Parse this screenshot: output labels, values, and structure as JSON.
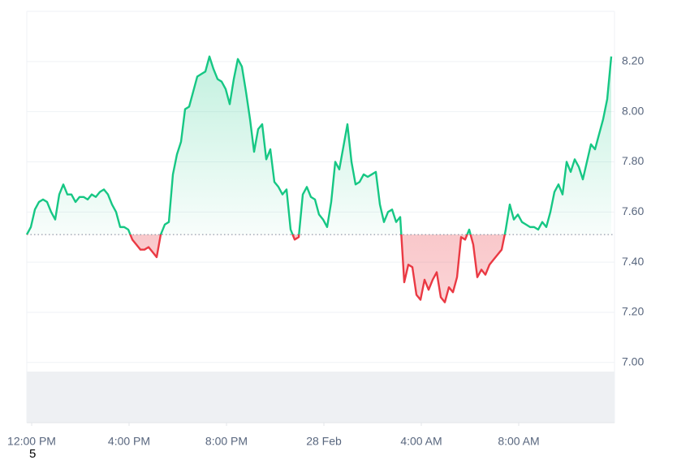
{
  "chart_data": {
    "type": "line",
    "up_color": "#16c784",
    "down_color": "#ea3943",
    "baseline": 7.51,
    "grid": true,
    "footnote": "5",
    "xlim": [
      -12,
      1436
    ],
    "xticks": [
      {
        "value": 0,
        "label": "12:00 PM"
      },
      {
        "value": 240,
        "label": "4:00 PM"
      },
      {
        "value": 480,
        "label": "8:00 PM"
      },
      {
        "value": 720,
        "label": "28 Feb"
      },
      {
        "value": 960,
        "label": "4:00 AM"
      },
      {
        "value": 1200,
        "label": "8:00 AM"
      }
    ],
    "ylim": [
      6.76,
      8.4
    ],
    "yticks": [
      {
        "value": 7.0,
        "label": "7.00"
      },
      {
        "value": 7.2,
        "label": "7.20"
      },
      {
        "value": 7.4,
        "label": "7.40"
      },
      {
        "value": 7.6,
        "label": "7.60"
      },
      {
        "value": 7.8,
        "label": "7.80"
      },
      {
        "value": 8.0,
        "label": "8.00"
      },
      {
        "value": 8.2,
        "label": "8.20"
      }
    ],
    "x": [
      -12,
      -2,
      8,
      18,
      28,
      38,
      48,
      58,
      68,
      78,
      88,
      98,
      108,
      118,
      128,
      138,
      148,
      158,
      168,
      178,
      188,
      198,
      208,
      218,
      228,
      238,
      248,
      258,
      268,
      278,
      288,
      298,
      308,
      318,
      328,
      338,
      348,
      358,
      368,
      378,
      388,
      398,
      408,
      418,
      428,
      438,
      448,
      458,
      468,
      478,
      488,
      498,
      508,
      518,
      528,
      538,
      548,
      558,
      568,
      578,
      588,
      598,
      608,
      618,
      628,
      638,
      648,
      658,
      668,
      678,
      688,
      698,
      708,
      718,
      728,
      738,
      748,
      758,
      768,
      778,
      788,
      798,
      808,
      818,
      828,
      838,
      848,
      858,
      868,
      878,
      888,
      898,
      908,
      918,
      928,
      938,
      948,
      958,
      968,
      978,
      988,
      998,
      1008,
      1018,
      1028,
      1038,
      1048,
      1058,
      1068,
      1078,
      1088,
      1098,
      1108,
      1118,
      1128,
      1138,
      1148,
      1158,
      1168,
      1178,
      1188,
      1198,
      1208,
      1218,
      1228,
      1238,
      1248,
      1258,
      1268,
      1278,
      1288,
      1298,
      1308,
      1318,
      1328,
      1338,
      1348,
      1358,
      1368,
      1378,
      1388,
      1398,
      1408,
      1418,
      1428
    ],
    "values": [
      7.51,
      7.54,
      7.61,
      7.64,
      7.65,
      7.64,
      7.6,
      7.57,
      7.67,
      7.71,
      7.67,
      7.67,
      7.64,
      7.66,
      7.66,
      7.65,
      7.67,
      7.66,
      7.68,
      7.69,
      7.67,
      7.63,
      7.6,
      7.54,
      7.54,
      7.53,
      7.49,
      7.47,
      7.45,
      7.45,
      7.46,
      7.44,
      7.42,
      7.51,
      7.55,
      7.56,
      7.75,
      7.83,
      7.88,
      8.01,
      8.02,
      8.08,
      8.14,
      8.15,
      8.16,
      8.22,
      8.17,
      8.13,
      8.12,
      8.09,
      8.03,
      8.13,
      8.21,
      8.18,
      8.08,
      7.97,
      7.84,
      7.93,
      7.95,
      7.81,
      7.85,
      7.72,
      7.7,
      7.67,
      7.69,
      7.53,
      7.49,
      7.5,
      7.67,
      7.7,
      7.66,
      7.65,
      7.59,
      7.57,
      7.54,
      7.64,
      7.8,
      7.77,
      7.86,
      7.95,
      7.8,
      7.71,
      7.72,
      7.75,
      7.74,
      7.75,
      7.76,
      7.63,
      7.56,
      7.6,
      7.61,
      7.56,
      7.58,
      7.32,
      7.39,
      7.38,
      7.27,
      7.25,
      7.33,
      7.29,
      7.33,
      7.36,
      7.26,
      7.24,
      7.3,
      7.28,
      7.34,
      7.5,
      7.49,
      7.53,
      7.47,
      7.34,
      7.37,
      7.35,
      7.39,
      7.41,
      7.43,
      7.45,
      7.53,
      7.63,
      7.57,
      7.59,
      7.56,
      7.55,
      7.54,
      7.54,
      7.53,
      7.56,
      7.54,
      7.6,
      7.68,
      7.71,
      7.67,
      7.8,
      7.76,
      7.81,
      7.78,
      7.73,
      7.8,
      7.87,
      7.85,
      7.91,
      7.97,
      8.05,
      8.22
    ]
  }
}
